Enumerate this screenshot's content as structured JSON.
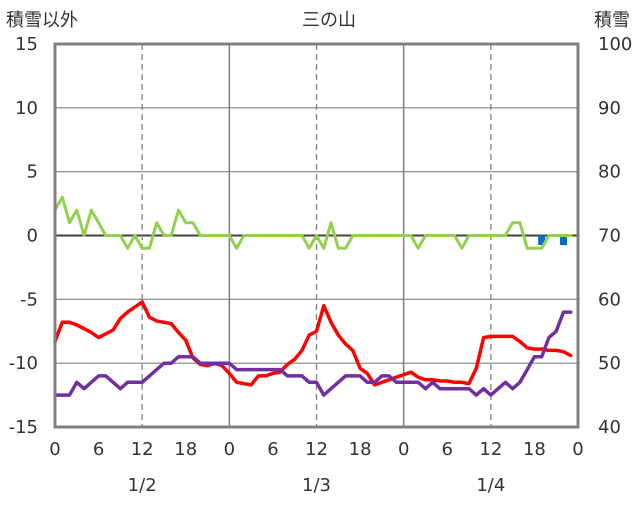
{
  "chart_data": {
    "type": "line",
    "title": "三の山",
    "left_axis_label": "積雪以外",
    "right_axis_label": "積雪",
    "left_ylim": [
      -15,
      15
    ],
    "left_ticks": [
      "15",
      "10",
      "5",
      "0",
      "-5",
      "-10",
      "-15"
    ],
    "right_ylim": [
      40,
      100
    ],
    "right_ticks": [
      "100",
      "90",
      "80",
      "70",
      "60",
      "50",
      "40"
    ],
    "x_range_hours": [
      0,
      72
    ],
    "x_ticks": [
      "0",
      "6",
      "12",
      "18",
      "0",
      "6",
      "12",
      "18",
      "0",
      "6",
      "12",
      "18",
      "0"
    ],
    "day_labels": [
      "1/2",
      "1/3",
      "1/4"
    ],
    "grid": true,
    "colors": {
      "red": "#ff0000",
      "purple": "#7030a0",
      "green": "#92d050",
      "blue": "#0070c0",
      "frame": "#808080"
    },
    "series": [
      {
        "color": "red",
        "x": [
          0,
          1,
          2,
          3,
          4,
          5,
          6,
          7,
          8,
          9,
          10,
          11,
          12,
          13,
          14,
          15,
          16,
          17,
          18,
          19,
          20,
          21,
          22,
          23,
          24,
          25,
          26,
          27,
          28,
          29,
          30,
          31,
          32,
          33,
          34,
          35,
          36,
          37,
          38,
          39,
          40,
          41,
          42,
          43,
          44,
          45,
          46,
          47,
          48,
          49,
          50,
          51,
          52,
          53,
          54,
          55,
          56,
          57,
          58,
          59,
          60,
          61,
          62,
          63,
          64,
          65,
          66,
          67,
          68,
          69,
          70,
          71
        ],
        "y": [
          -8.3,
          -6.8,
          -6.8,
          -7.0,
          -7.3,
          -7.6,
          -8.0,
          -7.7,
          -7.4,
          -6.5,
          -6.0,
          -5.6,
          -5.2,
          -6.4,
          -6.7,
          -6.8,
          -6.9,
          -7.6,
          -8.2,
          -9.6,
          -10.1,
          -10.2,
          -10.0,
          -10.2,
          -10.8,
          -11.5,
          -11.6,
          -11.7,
          -11.0,
          -11.0,
          -10.8,
          -10.7,
          -10.1,
          -9.7,
          -9.0,
          -7.8,
          -7.5,
          -5.5,
          -6.8,
          -7.8,
          -8.5,
          -9.0,
          -10.4,
          -10.8,
          -11.7,
          -11.5,
          -11.3,
          -11.1,
          -10.9,
          -10.7,
          -11.1,
          -11.3,
          -11.3,
          -11.4,
          -11.4,
          -11.5,
          -11.5,
          -11.6,
          -10.4,
          -8.0,
          -7.9,
          -7.9,
          -7.9,
          -7.9,
          -8.3,
          -8.8,
          -8.9,
          -8.9,
          -9.0,
          -9.0,
          -9.1,
          -9.4
        ]
      },
      {
        "color": "purple",
        "x": [
          0,
          1,
          2,
          3,
          4,
          5,
          6,
          7,
          8,
          9,
          10,
          11,
          12,
          13,
          14,
          15,
          16,
          17,
          18,
          19,
          20,
          21,
          22,
          23,
          24,
          25,
          26,
          27,
          28,
          29,
          30,
          31,
          32,
          33,
          34,
          35,
          36,
          37,
          38,
          39,
          40,
          41,
          42,
          43,
          44,
          45,
          46,
          47,
          48,
          49,
          50,
          51,
          52,
          53,
          54,
          55,
          56,
          57,
          58,
          59,
          60,
          61,
          62,
          63,
          64,
          65,
          66,
          67,
          68,
          69,
          70,
          71
        ],
        "y": [
          -12.5,
          -12.5,
          -12.5,
          -11.5,
          -12.0,
          -11.5,
          -11.0,
          -11.0,
          -11.5,
          -12.0,
          -11.5,
          -11.5,
          -11.5,
          -11.0,
          -10.5,
          -10.0,
          -10.0,
          -9.5,
          -9.5,
          -9.5,
          -10.0,
          -10.0,
          -10.0,
          -10.0,
          -10.0,
          -10.5,
          -10.5,
          -10.5,
          -10.5,
          -10.5,
          -10.5,
          -10.5,
          -11.0,
          -11.0,
          -11.0,
          -11.5,
          -11.5,
          -12.5,
          -12.0,
          -11.5,
          -11.0,
          -11.0,
          -11.0,
          -11.5,
          -11.5,
          -11.0,
          -11.0,
          -11.5,
          -11.5,
          -11.5,
          -11.5,
          -12.0,
          -11.5,
          -12.0,
          -12.0,
          -12.0,
          -12.0,
          -12.0,
          -12.5,
          -12.0,
          -12.5,
          -12.0,
          -11.5,
          -12.0,
          -11.5,
          -10.5,
          -9.5,
          -9.5,
          -8.0,
          -7.5,
          -6.0,
          -6.0
        ]
      },
      {
        "color": "green",
        "x": [
          0,
          1,
          2,
          3,
          4,
          5,
          6,
          7,
          8,
          9,
          10,
          11,
          12,
          13,
          14,
          15,
          16,
          17,
          18,
          19,
          20,
          21,
          22,
          23,
          24,
          25,
          26,
          27,
          28,
          29,
          30,
          31,
          32,
          33,
          34,
          35,
          36,
          37,
          38,
          39,
          40,
          41,
          42,
          43,
          44,
          45,
          46,
          47,
          48,
          49,
          50,
          51,
          52,
          53,
          54,
          55,
          56,
          57,
          58,
          59,
          60,
          61,
          62,
          63,
          64,
          65,
          66,
          67,
          68,
          69,
          70,
          71
        ],
        "y": [
          2,
          3,
          1,
          2,
          0,
          2,
          1,
          0,
          0,
          0,
          -1,
          0,
          -1,
          -1,
          1,
          0,
          0,
          2,
          1,
          1,
          0,
          0,
          0,
          0,
          0,
          -1,
          0,
          0,
          0,
          0,
          0,
          0,
          0,
          0,
          0,
          -1,
          0,
          -1,
          1,
          -1,
          -1,
          0,
          0,
          0,
          0,
          0,
          0,
          0,
          0,
          0,
          -1,
          0,
          0,
          0,
          0,
          0,
          -1,
          0,
          0,
          0,
          0,
          0,
          0,
          1,
          1,
          -1,
          -1,
          -1,
          0,
          0,
          0,
          0
        ]
      }
    ],
    "bars": {
      "color": "blue",
      "axis": "right",
      "x": [
        67,
        70
      ],
      "y": [
        68.5,
        68.5
      ]
    }
  }
}
